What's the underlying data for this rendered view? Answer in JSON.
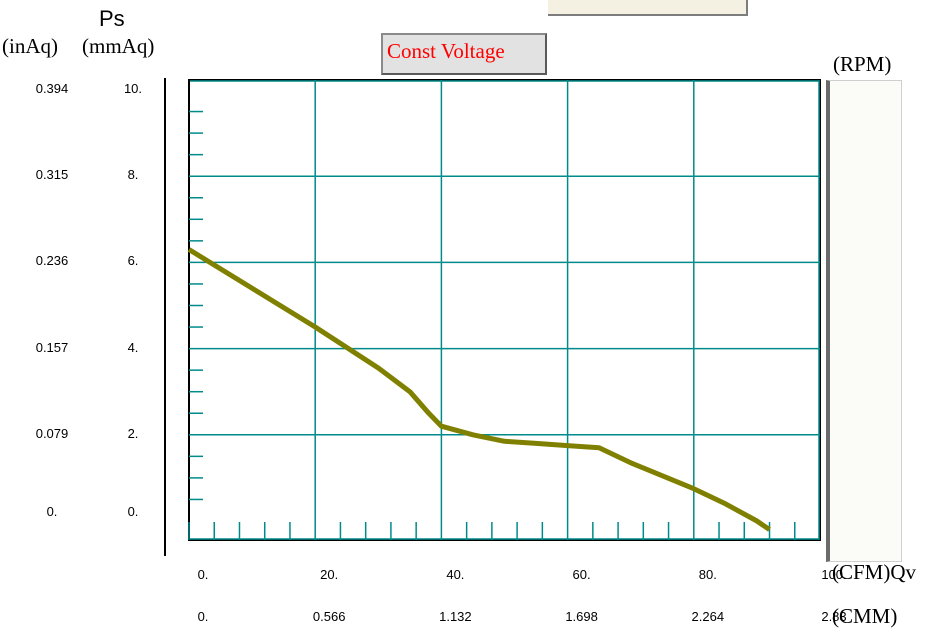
{
  "labels": {
    "ps": "Ps",
    "inaq": "(inAq)",
    "mmaq": "(mmAq)",
    "mode": "Const Voltage",
    "rpm": "(RPM)",
    "cfm": "(CFM)Qv",
    "cmm": "(CMM)"
  },
  "chart_data": {
    "type": "line",
    "title": "",
    "xlabel": "(CFM)Qv",
    "ylabel": "Ps (mmAq)",
    "xlim": [
      0,
      100
    ],
    "ylim": [
      -0.3,
      10.2
    ],
    "grid": true,
    "x_ticks_cfm": [
      "0.",
      "20.",
      "40.",
      "60.",
      "80.",
      "100."
    ],
    "x_ticks_cmm": [
      "0.",
      "0.566",
      "1.132",
      "1.698",
      "2.264",
      "2.83"
    ],
    "y_ticks_mmaq": [
      "10.",
      "8.",
      "6.",
      "4.",
      "2.",
      "0."
    ],
    "y_ticks_inaq": [
      "0.394",
      "0.315",
      "0.236",
      "0.157",
      "0.079",
      "0."
    ],
    "series": [
      {
        "color": "#808000",
        "x": [
          0,
          10,
          20,
          30,
          35,
          38,
          40,
          45,
          50,
          55,
          60,
          65,
          70,
          80,
          85,
          90,
          92
        ],
        "y": [
          6.3,
          5.4,
          4.5,
          3.55,
          3.0,
          2.5,
          2.2,
          2.0,
          1.85,
          1.8,
          1.75,
          1.7,
          1.35,
          0.75,
          0.4,
          0.0,
          -0.2
        ]
      }
    ]
  }
}
